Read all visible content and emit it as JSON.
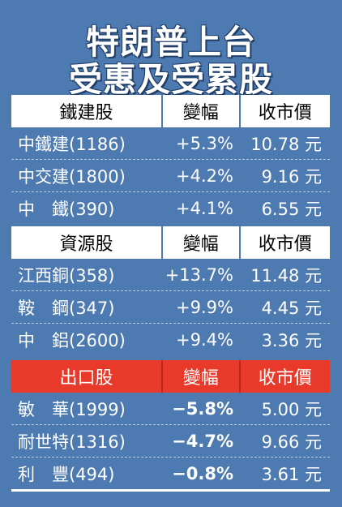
{
  "title": {
    "line1": "特朗普上台",
    "line2": "受惠及受累股"
  },
  "sections": [
    {
      "header": {
        "name": "鐵建股",
        "change": "變幅",
        "price": "收市價"
      },
      "rows": [
        {
          "name": "中鐵建(1186)",
          "change": "+5.3%",
          "price": "10.78 元"
        },
        {
          "name": "中交建(1800)",
          "change": "+4.2%",
          "price": "9.16 元"
        },
        {
          "name": "中　鐵(390)",
          "change": "+4.1%",
          "price": "6.55 元"
        }
      ]
    },
    {
      "header": {
        "name": "資源股",
        "change": "變幅",
        "price": "收市價"
      },
      "rows": [
        {
          "name": "江西銅(358)",
          "change": "+13.7%",
          "price": "11.48 元"
        },
        {
          "name": "鞍　鋼(347)",
          "change": "+9.9%",
          "price": "4.45 元"
        },
        {
          "name": "中　鋁(2600)",
          "change": "+9.4%",
          "price": "3.36 元"
        }
      ]
    },
    {
      "header": {
        "name": "出口股",
        "change": "變幅",
        "price": "收市價"
      },
      "rows": [
        {
          "name": "敏　華(1999)",
          "change": "−5.8%",
          "price": "5.00 元"
        },
        {
          "name": "耐世特(1316)",
          "change": "−4.7%",
          "price": "9.66 元"
        },
        {
          "name": "利　豐(494)",
          "change": "−0.8%",
          "price": "3.61 元"
        }
      ]
    }
  ],
  "colors": {
    "background": "#4d7ab0",
    "header": "#ffffff",
    "export_header": "#e8392a"
  }
}
